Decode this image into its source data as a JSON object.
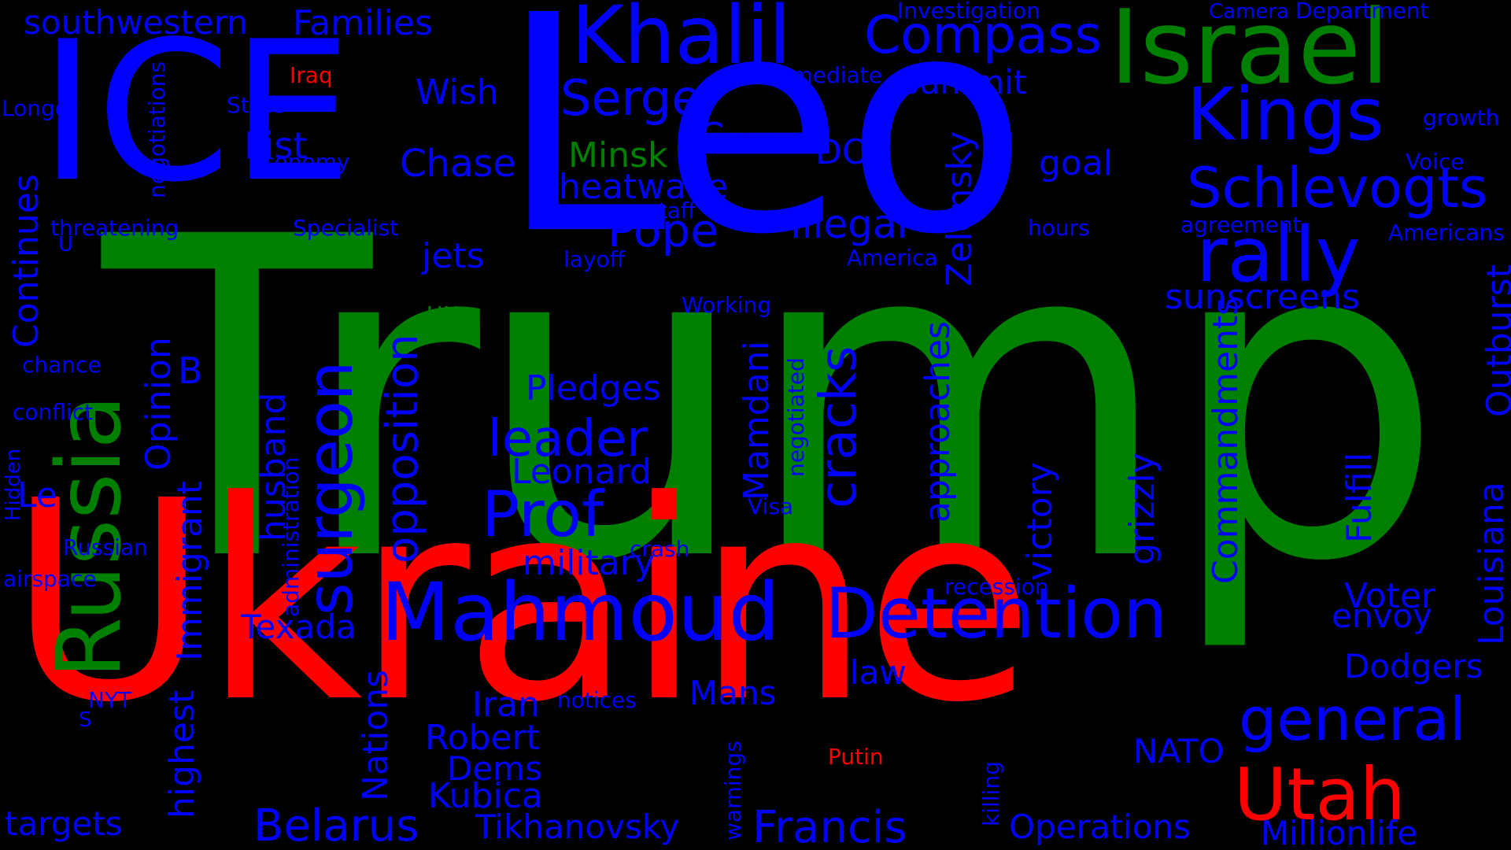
{
  "colors": {
    "background": "#000000",
    "blue": "#0000ff",
    "green": "#008000",
    "red": "#ff0000"
  },
  "words": {
    "leo": "Leo",
    "trump": "Trump",
    "ukraine": "Ukraine",
    "ice": "ICE",
    "israel": "Israel",
    "khalil": "Khalil",
    "kings": "Kings",
    "rally": "rally",
    "schlevogts": "Schlevogts",
    "compass": "Compass",
    "sergei": "Sergei",
    "russia": "Russia",
    "surgeon": "surgeon",
    "opposition": "opposition",
    "mahmoud": "Mahmoud",
    "detention": "Detention",
    "general": "general",
    "utah": "Utah",
    "prof": "Prof",
    "leader": "leader",
    "francis": "Francis",
    "belarus": "Belarus",
    "pope": "Pope",
    "illegal": "Illegal",
    "heatwave": "heatwave",
    "minsk": "Minsk",
    "chase": "Chase",
    "jets": "jets",
    "wish": "Wish",
    "list": "List",
    "summit": "summit",
    "goal": "goal",
    "doj": "DOJ",
    "c": "C",
    "families": "Families",
    "southwestern": "southwestern",
    "sunscreens": "sunscreens",
    "pledges": "Pledges",
    "leonard": "Leonard",
    "military": "military",
    "texada": "Texada",
    "iran": "Iran",
    "robert": "Robert",
    "dems": "Dems",
    "kubica": "Kubica",
    "tikhanovsky": "Tikhanovsky",
    "mans": "Mans",
    "law": "law",
    "nato": "NATO",
    "operations": "Operations",
    "millionlife": "Millionlife",
    "voter": "Voter",
    "envoy": "envoy",
    "dodgers": "Dodgers",
    "targets": "targets",
    "le": "Le",
    "b": "B",
    "putin": "Putin",
    "iraq": "Iraq",
    "investigation": "Investigation",
    "camera": "Camera",
    "department": "Department",
    "immediate": "Immediate",
    "growth": "growth",
    "voice": "Voice",
    "americans": "Americans",
    "agreement": "agreement",
    "hours": "hours",
    "america": "America",
    "staff": "staff",
    "layoff": "layoff",
    "working": "Working",
    "un": "UN",
    "state": "State",
    "economy": "economy",
    "specialist": "Specialist",
    "threatening": "threatening",
    "longer": "Longer",
    "u": "U",
    "chance": "chance",
    "conflict": "conflict",
    "russian": "Russian",
    "airspace": "airspace",
    "nyt": "NYT",
    "s": "S",
    "visa": "Visa",
    "crash": "crash",
    "notices": "notices",
    "recession": "recession",
    "continues": "Continues",
    "opinion": "Opinion",
    "immigrant": "Immigrant",
    "highest": "highest",
    "husband": "husband",
    "administration": "administration",
    "nations": "Nations",
    "hidden": "Hidden",
    "negotiations": "negotiations",
    "mamdani": "Mamdani",
    "negotiated": "negotiated",
    "cracks": "cracks",
    "approaches": "approaches",
    "zelensky": "Zelensky",
    "victory": "victory",
    "grizzly": "grizzly",
    "commandments": "Commandments",
    "fulfill": "Fulfill",
    "louisiana": "Louisiana",
    "outburst": "Outburst",
    "warnings": "warnings",
    "killing": "killing"
  }
}
